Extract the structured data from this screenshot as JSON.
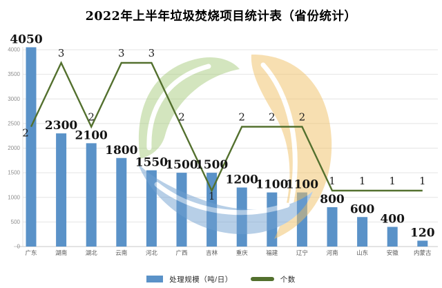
{
  "title": "2022年上半年垃圾焚烧项目统计表（省份统计）",
  "chart_data": {
    "type": "bar",
    "subtype": "bar-line-combo",
    "title": "2022年上半年垃圾焚烧项目统计表（省份统计）",
    "categories": [
      "广东",
      "湖南",
      "湖北",
      "云南",
      "河北",
      "广西",
      "吉林",
      "重庆",
      "福建",
      "辽宁",
      "河南",
      "山东",
      "安徽",
      "内蒙古"
    ],
    "series": [
      {
        "name": "处理规模（吨/日）",
        "type": "bar",
        "color": "#5a92c8",
        "values": [
          4050,
          2300,
          2100,
          1800,
          1550,
          1500,
          1500,
          1200,
          1100,
          1100,
          800,
          600,
          400,
          120
        ]
      },
      {
        "name": "个数",
        "type": "line",
        "color": "#53702e",
        "values": [
          2,
          3,
          2,
          3,
          3,
          2,
          1,
          2,
          2,
          2,
          1,
          1,
          1,
          1
        ]
      }
    ],
    "y_axis": {
      "min": 0,
      "max": 4000,
      "step": 500,
      "tick_labels": [
        "0",
        "500",
        "1000",
        "1500",
        "2000",
        "2500",
        "3000",
        "3500",
        "4000"
      ]
    },
    "grid": true,
    "legend_position": "bottom"
  },
  "colors": {
    "grid_line": "#e4e4e4",
    "axis_line": "#c8c8c8",
    "y_tick_text": "#8c8c8c",
    "x_label_text": "#595959",
    "value_label_text": "#141414"
  },
  "watermark": {
    "green": "#a8cc7f",
    "orange": "#f1c165",
    "blue": "#71a0d1",
    "opacity": 0.5
  }
}
